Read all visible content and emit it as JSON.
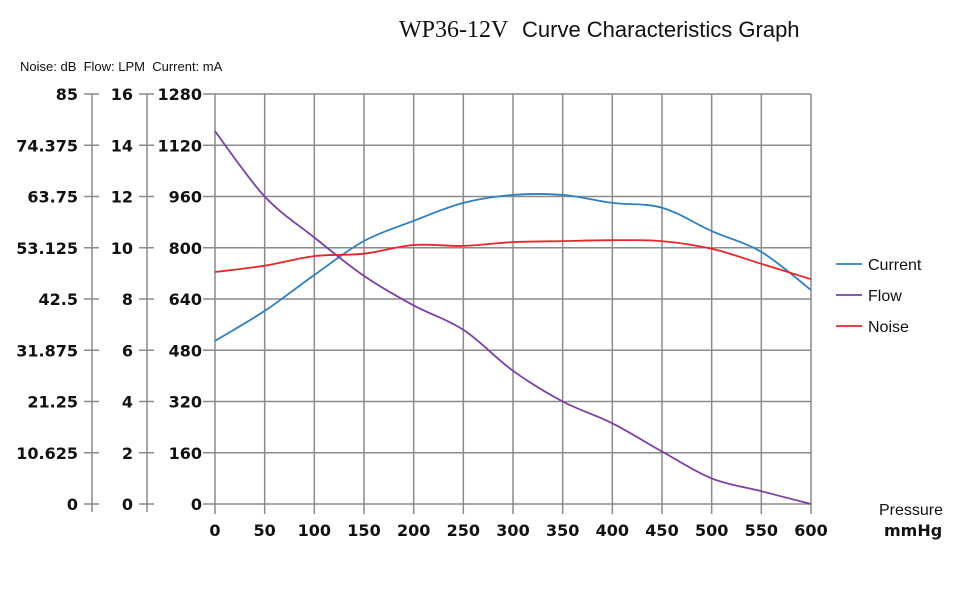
{
  "chart_data": {
    "type": "line",
    "title_model": "WP36-12V",
    "title_rest": "Curve Characteristics Graph",
    "units_label": "Noise: dB  Flow: LPM  Current: mA",
    "xlabel_line1": "Pressure",
    "xlabel_line2": "mmHg",
    "x": [
      0,
      50,
      100,
      150,
      200,
      250,
      300,
      350,
      400,
      450,
      500,
      550,
      600
    ],
    "x_ticks": [
      "0",
      "50",
      "100",
      "150",
      "200",
      "250",
      "300",
      "350",
      "400",
      "450",
      "500",
      "550",
      "600"
    ],
    "xlim": [
      0,
      600
    ],
    "axes": {
      "noise": {
        "unit": "dB",
        "ylim": [
          0,
          85
        ],
        "ticks": [
          "0",
          "10.625",
          "21.25",
          "31.875",
          "42.5",
          "53.125",
          "63.75",
          "74.375",
          "85"
        ]
      },
      "flow": {
        "unit": "LPM",
        "ylim": [
          0,
          16
        ],
        "ticks": [
          "0",
          "2",
          "4",
          "6",
          "8",
          "10",
          "12",
          "14",
          "16"
        ]
      },
      "current": {
        "unit": "mA",
        "ylim": [
          0,
          1280
        ],
        "ticks": [
          "0",
          "160",
          "320",
          "480",
          "640",
          "800",
          "960",
          "1120",
          "1280"
        ]
      }
    },
    "grid": true,
    "legend_position": "right",
    "series": [
      {
        "name": "Current",
        "axis": "current",
        "color": "#2e7fbf",
        "values": [
          509,
          603,
          715,
          821,
          884,
          940,
          965,
          965,
          940,
          925,
          852,
          787,
          668
        ]
      },
      {
        "name": "Flow",
        "axis": "flow",
        "color": "#7b3fa6",
        "values": [
          14.55,
          12.0,
          10.4,
          8.9,
          7.75,
          6.8,
          5.2,
          4.0,
          3.15,
          2.05,
          1.0,
          0.5,
          0.0
        ]
      },
      {
        "name": "Noise",
        "axis": "noise",
        "color": "#e8262a",
        "values": [
          48.1,
          49.4,
          51.4,
          51.9,
          53.7,
          53.5,
          54.3,
          54.5,
          54.7,
          54.5,
          52.9,
          49.8,
          46.6
        ]
      }
    ]
  }
}
